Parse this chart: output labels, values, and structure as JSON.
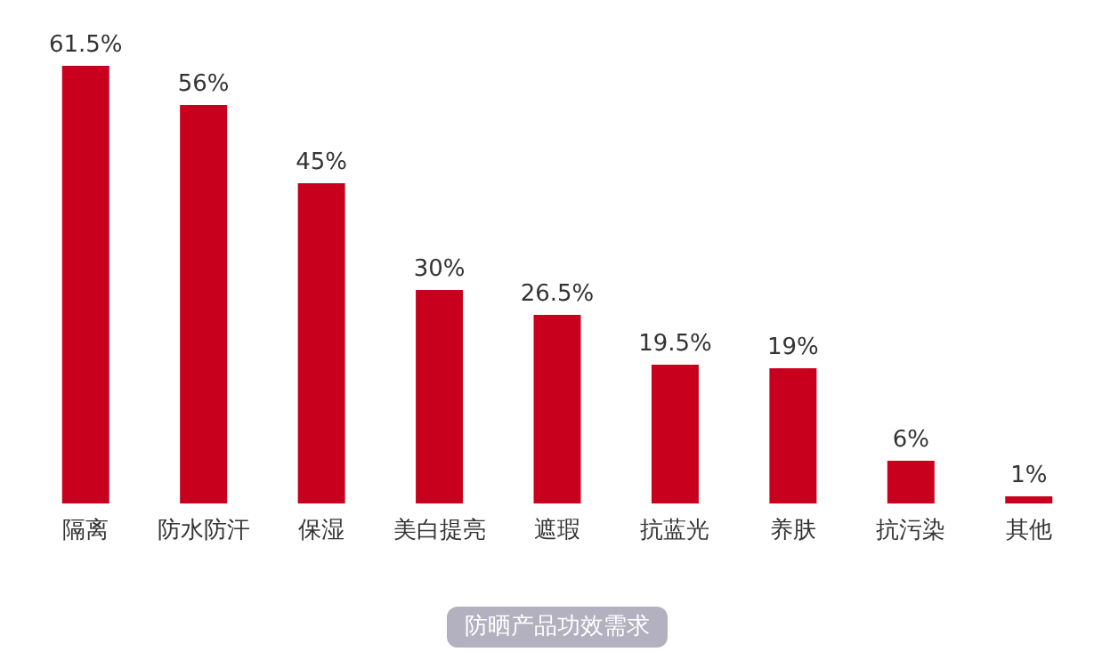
{
  "chart_data": {
    "type": "bar",
    "title": "防晒产品功效需求",
    "categories": [
      "隔离",
      "防水防汗",
      "保湿",
      "美白提亮",
      "遮瑕",
      "抗蓝光",
      "养肤",
      "抗污染",
      "其他"
    ],
    "values": [
      61.5,
      56,
      45,
      30,
      26.5,
      19.5,
      19,
      6,
      1
    ],
    "value_labels": [
      "61.5%",
      "56%",
      "45%",
      "30%",
      "26.5%",
      "19.5%",
      "19%",
      "6%",
      "1%"
    ],
    "color": "#c8001e"
  }
}
